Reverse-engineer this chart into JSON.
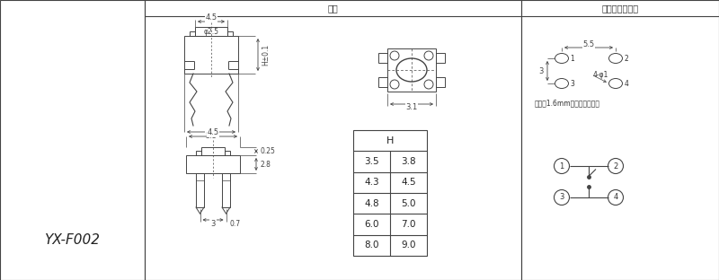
{
  "title_left": "尺寸",
  "title_right": "安裝圖及電路圖",
  "model": "YX-F002",
  "bg_color": "#ffffff",
  "line_color": "#444444",
  "dim_color": "#444444",
  "table_header": "H",
  "table_data": [
    [
      "3.5",
      "3.8"
    ],
    [
      "4.3",
      "4.5"
    ],
    [
      "4.8",
      "5.0"
    ],
    [
      "6.0",
      "7.0"
    ],
    [
      "8.0",
      "9.0"
    ]
  ],
  "note_text": "請使用1.6mm厚的印刷電路板",
  "dim_labels": {
    "top_width": "4.5",
    "stem_diam": "φ2.5",
    "height_tol": "H±0.1",
    "body_width": "5.5",
    "side_width": "3.1",
    "bottom_width": "4.5",
    "pin_gap": "0.25",
    "pin_len": "2.8",
    "pin_bottom": "3",
    "pin_width": "0.7",
    "pcb_spacing": "5.5",
    "pad_spacing": "3",
    "pad_label": "4-φ1"
  }
}
